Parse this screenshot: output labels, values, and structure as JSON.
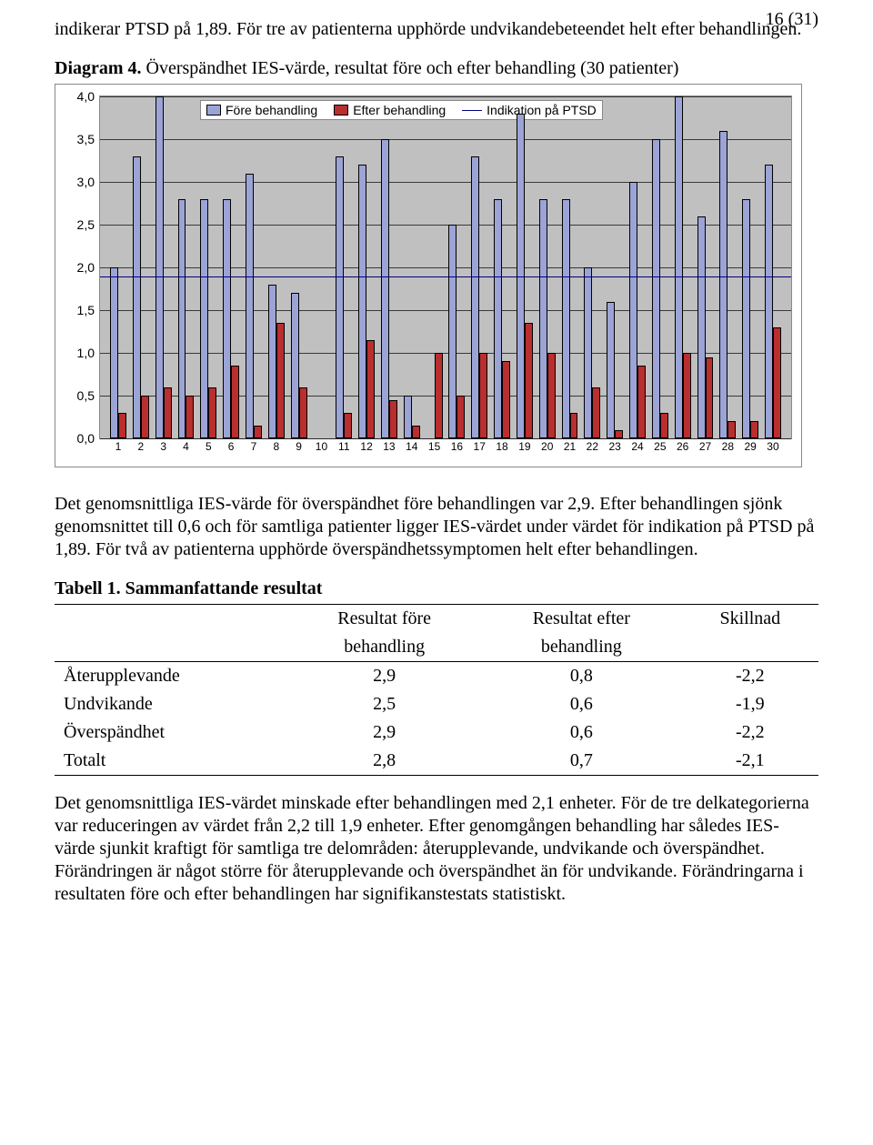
{
  "page_number": "16 (31)",
  "intro_text": "indikerar PTSD på 1,89. För tre av patienterna upphörde undvikandebeteendet helt efter behandlingen.",
  "chart_heading": "Diagram 4. ",
  "chart_title": "Överspändhet IES-värde, resultat före och efter behandling (30 patienter)",
  "chart": {
    "type": "bar",
    "ymin": 0.0,
    "ymax": 4.0,
    "ytick_step": 0.5,
    "yticks": [
      "0,0",
      "0,5",
      "1,0",
      "1,5",
      "2,0",
      "2,5",
      "3,0",
      "3,5",
      "4,0"
    ],
    "indicator_value": 1.89,
    "legend": {
      "fore": "Före behandling",
      "after": "Efter behandling",
      "line": "Indikation på PTSD"
    },
    "colors": {
      "fore": "#9ca4d6",
      "after": "#b92e2e",
      "plot_bg": "#c0c0c0",
      "indicator": "#000080",
      "bar_border": "#000000"
    },
    "categories": [
      1,
      2,
      3,
      4,
      5,
      6,
      7,
      8,
      9,
      10,
      11,
      12,
      13,
      14,
      15,
      16,
      17,
      18,
      19,
      20,
      21,
      22,
      23,
      24,
      25,
      26,
      27,
      28,
      29,
      30
    ],
    "fore_values": [
      2.0,
      3.3,
      4.0,
      2.8,
      2.8,
      2.8,
      3.1,
      1.8,
      1.7,
      3.3,
      3.2,
      3.5,
      0.5,
      2.5,
      3.3,
      2.8,
      3.8,
      2.8,
      2.8,
      2.0,
      1.6,
      3.0,
      3.5,
      4.0,
      2.6,
      3.6,
      2.8,
      3.2
    ],
    "after_values": [
      0.3,
      0.5,
      0.6,
      0.5,
      0.6,
      0.85,
      0.15,
      1.35,
      0.6,
      0.3,
      1.15,
      0.45,
      0.15,
      1.0,
      0.5,
      1.0,
      0.9,
      1.35,
      1.0,
      0.3,
      0.6,
      0.1,
      0.85,
      0.3,
      1.0,
      0.95,
      0.2,
      0.2,
      1.3
    ],
    "after_positions": [
      1,
      2,
      3,
      4,
      5,
      6,
      7,
      8,
      9,
      11,
      12,
      13,
      14,
      15,
      16,
      17,
      18,
      19,
      20,
      21,
      22,
      23,
      24,
      25,
      26,
      27,
      28,
      29,
      30
    ],
    "fore_positions": [
      1,
      2,
      3,
      4,
      5,
      6,
      7,
      8,
      9,
      11,
      12,
      13,
      14,
      16,
      17,
      18,
      19,
      20,
      21,
      22,
      23,
      24,
      25,
      26,
      27,
      28,
      29,
      30
    ]
  },
  "para_after_chart": "Det genomsnittliga IES-värde för överspändhet före behandlingen var 2,9. Efter behandlingen sjönk genomsnittet till 0,6 och för samtliga patienter ligger IES-värdet under värdet för indikation på PTSD på 1,89. För två av patienterna upphörde överspändhetssymptomen helt efter behandlingen.",
  "table_heading": "Tabell 1. Sammanfattande resultat",
  "table": {
    "columns": [
      "",
      "Resultat före behandling",
      "Resultat efter behandling",
      "Skillnad"
    ],
    "col_sub": [
      "",
      "behandling",
      "behandling",
      ""
    ],
    "col_top": [
      "",
      "Resultat före",
      "Resultat efter",
      "Skillnad"
    ],
    "rows": [
      [
        "Återupplevande",
        "2,9",
        "0,8",
        "-2,2"
      ],
      [
        "Undvikande",
        "2,5",
        "0,6",
        "-1,9"
      ],
      [
        "Överspändhet",
        "2,9",
        "0,6",
        "-2,2"
      ],
      [
        "Totalt",
        "2,8",
        "0,7",
        "-2,1"
      ]
    ]
  },
  "final_para": "Det genomsnittliga IES-värdet minskade efter behandlingen med 2,1 enheter. För de tre delkategorierna var reduceringen av värdet från 2,2 till 1,9 enheter. Efter genomgången behandling har således IES-värde sjunkit kraftigt för samtliga tre delområden: återupplevande, undvikande och överspändhet. Förändringen är något större för återupplevande och överspändhet än för undvikande. Förändringarna i resultaten före och efter behandlingen har signifikanstestats statistiskt."
}
